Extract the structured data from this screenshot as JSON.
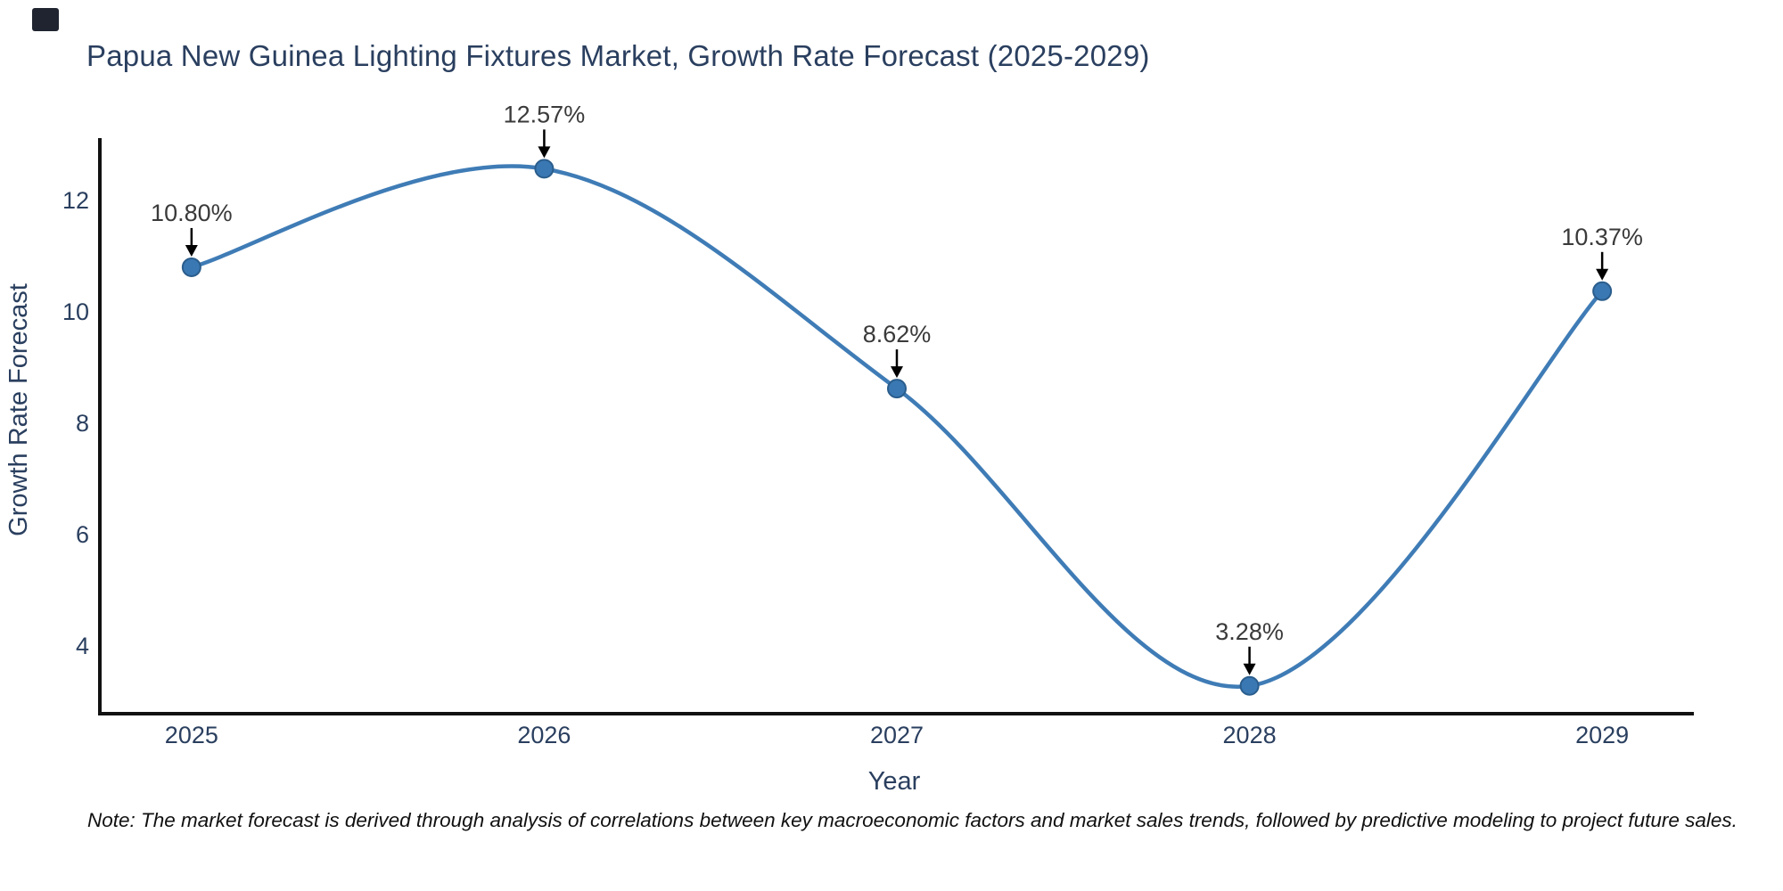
{
  "corner_mark": {
    "color": "#1f2430"
  },
  "footnote": "Note: The market forecast is derived through analysis of correlations between key macroeconomic factors and market sales trends, followed by predictive modeling to project future sales.",
  "chart_data": {
    "type": "line",
    "title": "Papua New Guinea Lighting Fixtures Market, Growth Rate Forecast (2025-2029)",
    "xlabel": "Year",
    "ylabel": "Growth Rate Forecast",
    "x": [
      2025,
      2026,
      2027,
      2028,
      2029
    ],
    "values": [
      10.8,
      12.57,
      8.62,
      3.28,
      10.37
    ],
    "point_labels": [
      "10.80%",
      "12.57%",
      "8.62%",
      "3.28%",
      "10.37%"
    ],
    "xticks": [
      2025,
      2026,
      2027,
      2028,
      2029
    ],
    "xtick_labels": [
      "2025",
      "2026",
      "2027",
      "2028",
      "2029"
    ],
    "yticks": [
      4,
      6,
      8,
      10,
      12
    ],
    "ytick_labels": [
      "4",
      "6",
      "8",
      "10",
      "12"
    ],
    "xlim": [
      2024.74,
      2029.26
    ],
    "ylim": [
      2.78,
      13.12
    ],
    "curve": "spline",
    "grid": false,
    "legend": "none",
    "colors": {
      "line": "#3f7cb6",
      "marker_fill": "#3a78b3",
      "marker_edge": "#2a5d8c",
      "axis": "#111111",
      "tick_label": "#2a3f5f",
      "axis_title": "#2a3f5f",
      "title": "#2a3f5f",
      "annotation_text": "#3a3a3a",
      "annotation_arrow": "#000000"
    }
  }
}
